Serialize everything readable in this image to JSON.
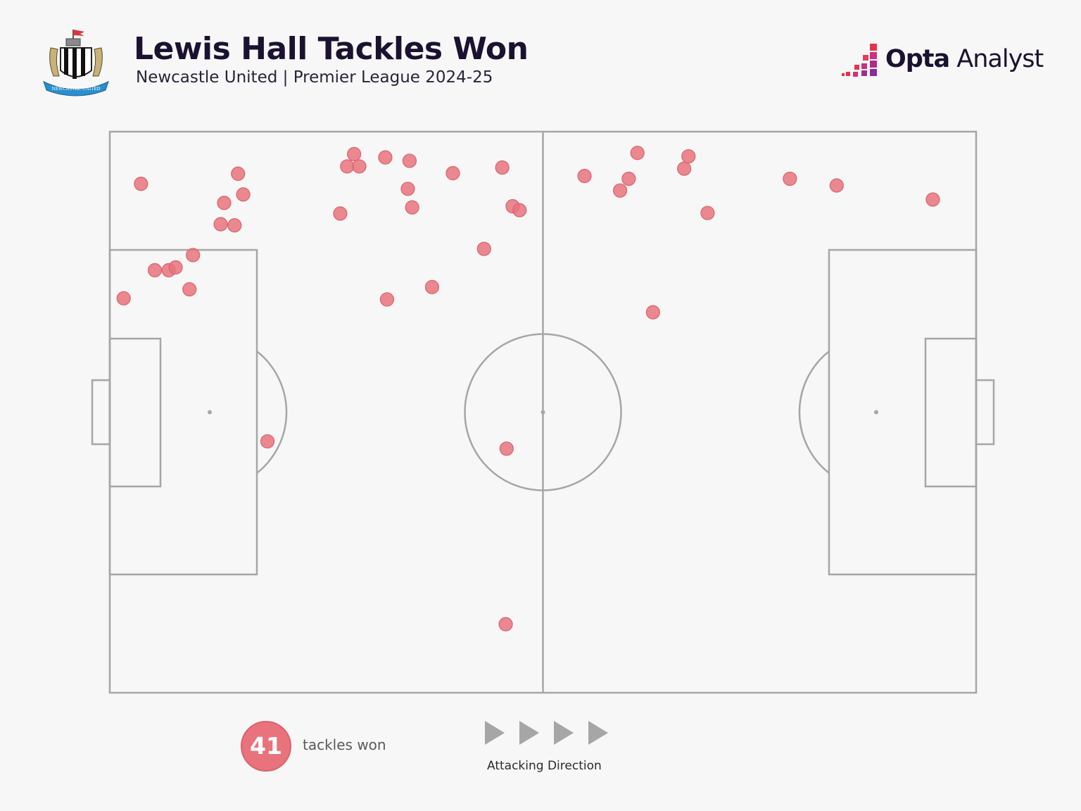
{
  "header": {
    "title": "Lewis Hall Tackles Won",
    "subtitle": "Newcastle United | Premier League 2024-25",
    "brand_bold": "Opta",
    "brand_light": " Analyst",
    "crest_text": "NEWCASTLE UNITED"
  },
  "legend": {
    "count": "41",
    "count_label": "tackles won",
    "direction_label": "Attacking Direction"
  },
  "colors": {
    "marker": "#e8737c",
    "marker_stroke": "#d9646e",
    "pitch_lines": "#a6a6a6",
    "arrows": "#a6a6a6"
  },
  "chart_data": {
    "type": "scatter",
    "xlim": [
      0,
      100
    ],
    "ylim": [
      0,
      100
    ],
    "attacking_direction": "left-to-right",
    "total": 41,
    "points": [
      {
        "x": 3.6,
        "y": 90.7
      },
      {
        "x": 14.8,
        "y": 92.5
      },
      {
        "x": 15.4,
        "y": 88.8
      },
      {
        "x": 13.2,
        "y": 87.3
      },
      {
        "x": 12.8,
        "y": 83.5
      },
      {
        "x": 14.4,
        "y": 83.3
      },
      {
        "x": 1.6,
        "y": 70.3
      },
      {
        "x": 5.2,
        "y": 75.3
      },
      {
        "x": 6.8,
        "y": 75.3
      },
      {
        "x": 7.6,
        "y": 75.8
      },
      {
        "x": 9.6,
        "y": 78.0
      },
      {
        "x": 9.2,
        "y": 71.9
      },
      {
        "x": 18.2,
        "y": 44.8
      },
      {
        "x": 26.6,
        "y": 85.4
      },
      {
        "x": 27.4,
        "y": 93.8
      },
      {
        "x": 28.2,
        "y": 96.0
      },
      {
        "x": 28.8,
        "y": 93.8
      },
      {
        "x": 31.8,
        "y": 95.4
      },
      {
        "x": 34.6,
        "y": 94.8
      },
      {
        "x": 34.4,
        "y": 89.8
      },
      {
        "x": 34.9,
        "y": 86.5
      },
      {
        "x": 39.6,
        "y": 92.6
      },
      {
        "x": 45.3,
        "y": 93.6
      },
      {
        "x": 46.5,
        "y": 86.7
      },
      {
        "x": 47.3,
        "y": 86.0
      },
      {
        "x": 43.2,
        "y": 79.1
      },
      {
        "x": 37.2,
        "y": 72.3
      },
      {
        "x": 32.0,
        "y": 70.1
      },
      {
        "x": 45.8,
        "y": 43.5
      },
      {
        "x": 45.7,
        "y": 12.2
      },
      {
        "x": 54.8,
        "y": 92.1
      },
      {
        "x": 60.9,
        "y": 96.2
      },
      {
        "x": 59.9,
        "y": 91.6
      },
      {
        "x": 58.9,
        "y": 89.5
      },
      {
        "x": 66.8,
        "y": 95.6
      },
      {
        "x": 66.3,
        "y": 93.4
      },
      {
        "x": 69.0,
        "y": 85.5
      },
      {
        "x": 62.7,
        "y": 67.8
      },
      {
        "x": 78.5,
        "y": 91.6
      },
      {
        "x": 83.9,
        "y": 90.4
      },
      {
        "x": 95.0,
        "y": 87.9
      }
    ]
  }
}
